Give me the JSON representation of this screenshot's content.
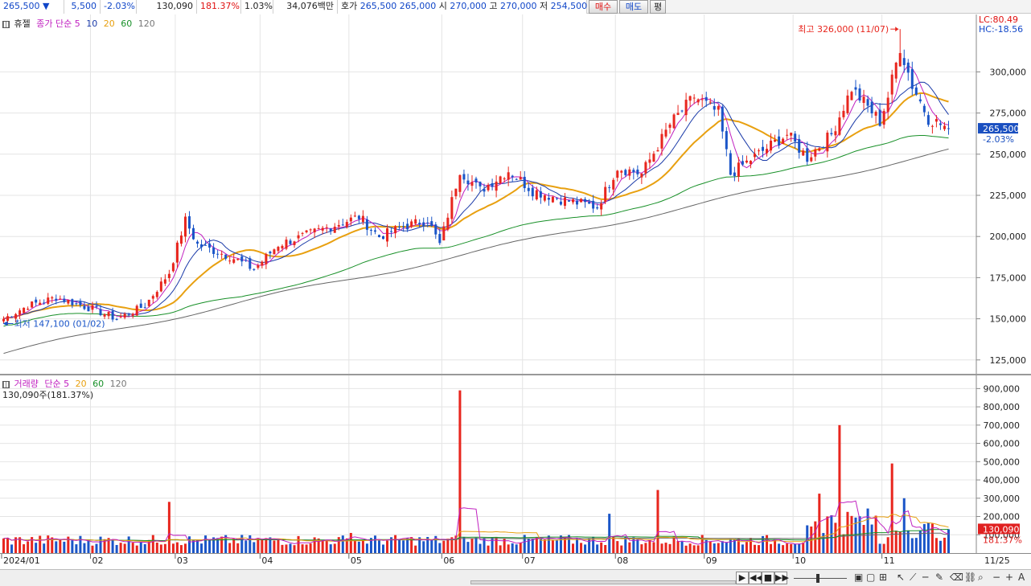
{
  "quote": {
    "price": "265,500",
    "down_arrow": "▼",
    "change": "5,500",
    "change_pct": "-2.03%",
    "volume": "130,090",
    "volume_ratio": "181.37%",
    "turnover_ratio": "1.03%",
    "amount": "34,076백만",
    "bid_label": "호가",
    "bid1": "265,500",
    "bid2": "265,000",
    "open_label": "시",
    "open": "270,000",
    "high_label": "고",
    "high": "270,000",
    "low_label": "저",
    "low": "254,500",
    "buy_button": "매수",
    "sell_button": "매도",
    "avg_button": "평"
  },
  "price_pane": {
    "stock_name": "휴젤",
    "ma_label": "종가 단순",
    "ma_periods": [
      "5",
      "10",
      "20",
      "60",
      "120"
    ],
    "lc_text": "LC:80.49",
    "hc_text": "HC:-18.56",
    "high_marker": "최고 326,000 (11/07)",
    "low_marker": "최저 147,100 (01/02)",
    "current_price_tag": "265,500",
    "current_change_tag": "-2.03%",
    "y_ticks": [
      "300,000",
      "275,000",
      "250,000",
      "225,000",
      "200,000",
      "175,000",
      "150,000",
      "125,000"
    ]
  },
  "volume_pane": {
    "label": "거래량",
    "ma_label": "단순",
    "ma_periods": [
      "5",
      "20",
      "60",
      "120"
    ],
    "current_volume": "130,090주(181.37%)",
    "volume_tag": "130,090",
    "ratio_tag": "181.37%",
    "y_ticks": [
      "900,000",
      "800,000",
      "700,000",
      "600,000",
      "500,000",
      "400,000",
      "300,000",
      "200,000",
      "100,000"
    ]
  },
  "x_axis": {
    "labels": [
      "2024/01",
      "02",
      "03",
      "04",
      "05",
      "06",
      "07",
      "08",
      "09",
      "10",
      "11"
    ],
    "right_label": "11/25"
  },
  "colors": {
    "up": "#e8261e",
    "down": "#1a55c8",
    "ma5": "#c020c0",
    "ma10": "#1a3aa8",
    "ma20": "#e8a010",
    "ma60": "#189028",
    "ma120": "#666666",
    "grid": "#e4e4e4"
  },
  "chart_data": {
    "type": "candlestick",
    "price_anchors": [
      [
        "01/02",
        150000
      ],
      [
        "01/10",
        158000
      ],
      [
        "01/20",
        163000
      ],
      [
        "02/01",
        156000
      ],
      [
        "02/10",
        150000
      ],
      [
        "02/20",
        158000
      ],
      [
        "02/28",
        178000
      ],
      [
        "03/05",
        210000
      ],
      [
        "03/10",
        195000
      ],
      [
        "03/20",
        188000
      ],
      [
        "03/28",
        180000
      ],
      [
        "04/05",
        195000
      ],
      [
        "04/15",
        200000
      ],
      [
        "04/25",
        207000
      ],
      [
        "05/03",
        212000
      ],
      [
        "05/10",
        200000
      ],
      [
        "05/20",
        206000
      ],
      [
        "05/28",
        210000
      ],
      [
        "06/01",
        195000
      ],
      [
        "06/07",
        240000
      ],
      [
        "06/15",
        228000
      ],
      [
        "06/25",
        240000
      ],
      [
        "07/03",
        228000
      ],
      [
        "07/15",
        222000
      ],
      [
        "07/25",
        218000
      ],
      [
        "08/01",
        242000
      ],
      [
        "08/10",
        238000
      ],
      [
        "08/20",
        268000
      ],
      [
        "08/28",
        285000
      ],
      [
        "09/05",
        275000
      ],
      [
        "09/10",
        238000
      ],
      [
        "09/20",
        252000
      ],
      [
        "09/30",
        262000
      ],
      [
        "10/07",
        248000
      ],
      [
        "10/15",
        262000
      ],
      [
        "10/22",
        290000
      ],
      [
        "10/31",
        270000
      ],
      [
        "11/04",
        285000
      ],
      [
        "11/07",
        315000
      ],
      [
        "11/12",
        292000
      ],
      [
        "11/18",
        272000
      ],
      [
        "11/25",
        265500
      ]
    ],
    "high": {
      "value": 326000,
      "date": "11/07"
    },
    "low": {
      "value": 147100,
      "date": "01/02"
    },
    "ylim_price": [
      120000,
      330000
    ],
    "ylim_volume": [
      0,
      950000
    ],
    "volume_spikes": [
      [
        "02/28",
        280000
      ],
      [
        "05/01",
        110000
      ],
      [
        "06/07",
        890000
      ],
      [
        "07/30",
        215000
      ],
      [
        "08/15",
        345000
      ],
      [
        "10/10",
        325000
      ],
      [
        "10/17",
        700000
      ],
      [
        "11/05",
        490000
      ],
      [
        "11/08",
        300000
      ]
    ],
    "last_volume": 130090
  }
}
